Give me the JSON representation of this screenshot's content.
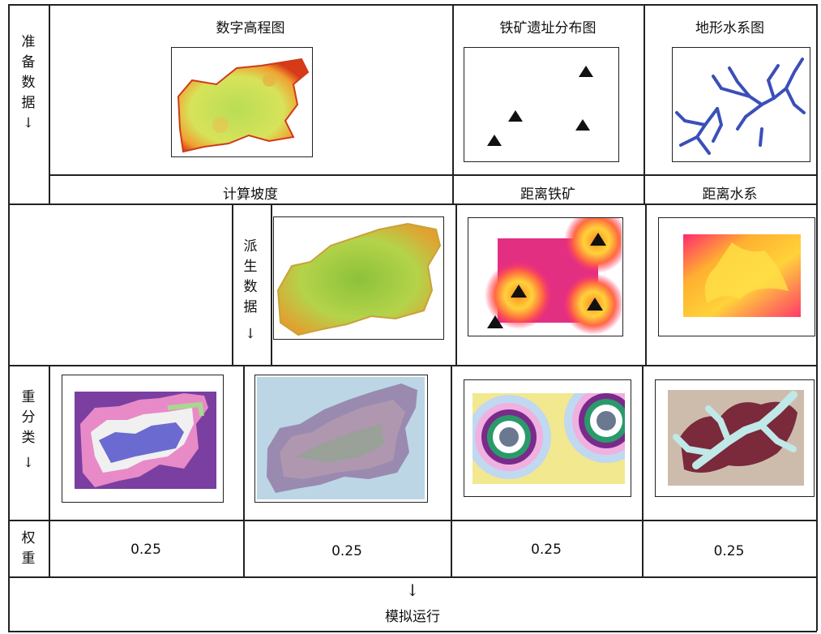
{
  "rows": {
    "prep": {
      "label_chars": [
        "准",
        "备",
        "数",
        "据"
      ],
      "arrow": "↓"
    },
    "derived": {
      "label_chars": [
        "派",
        "生",
        "数",
        "据"
      ],
      "arrow": "↓"
    },
    "reclass": {
      "label_chars": [
        "重",
        "分",
        "类"
      ],
      "arrow": "↓"
    },
    "weight": {
      "label_chars": [
        "权",
        "重"
      ]
    }
  },
  "prep_titles": [
    "数字高程图",
    "铁矿遗址分布图",
    "地形水系图"
  ],
  "ops": [
    "计算坡度",
    "距离铁矿",
    "距离水系"
  ],
  "weights": [
    "0.25",
    "0.25",
    "0.25",
    "0.25"
  ],
  "final": {
    "arrow": "↓",
    "label": "模拟运行"
  },
  "colors": {
    "dem_low": "#c6e35a",
    "dem_high": "#e0421a",
    "river": "#3a4fb8",
    "hot": "#ff2a6e",
    "warm": "#ffd23a",
    "purple_bg": "#7a3fa0"
  }
}
